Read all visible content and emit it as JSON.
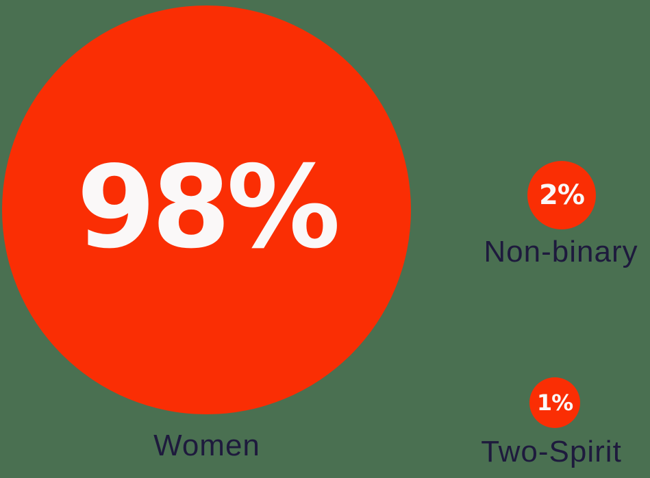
{
  "colors": {
    "bubble": "#fa2e04",
    "label": "#1e1a3d",
    "value": "#faf8f8",
    "background": "#4a7051"
  },
  "bubbles": [
    {
      "id": "women",
      "value_label": "98%",
      "label": "Women"
    },
    {
      "id": "non-binary",
      "value_label": "2%",
      "label": "Non-binary"
    },
    {
      "id": "two-spirit",
      "value_label": "1%",
      "label": "Two-Spirit"
    }
  ],
  "chart_data": {
    "type": "bubble",
    "categories": [
      "Women",
      "Non-binary",
      "Two-Spirit"
    ],
    "values": [
      98,
      2,
      1
    ],
    "unit": "%",
    "value_labels": [
      "98%",
      "2%",
      "1%"
    ],
    "title": "",
    "xlabel": "",
    "ylabel": "",
    "legend_position": "none",
    "layout": "area-proportional circles; large circle left with centered value, two small circles right column, category labels below each circle"
  }
}
